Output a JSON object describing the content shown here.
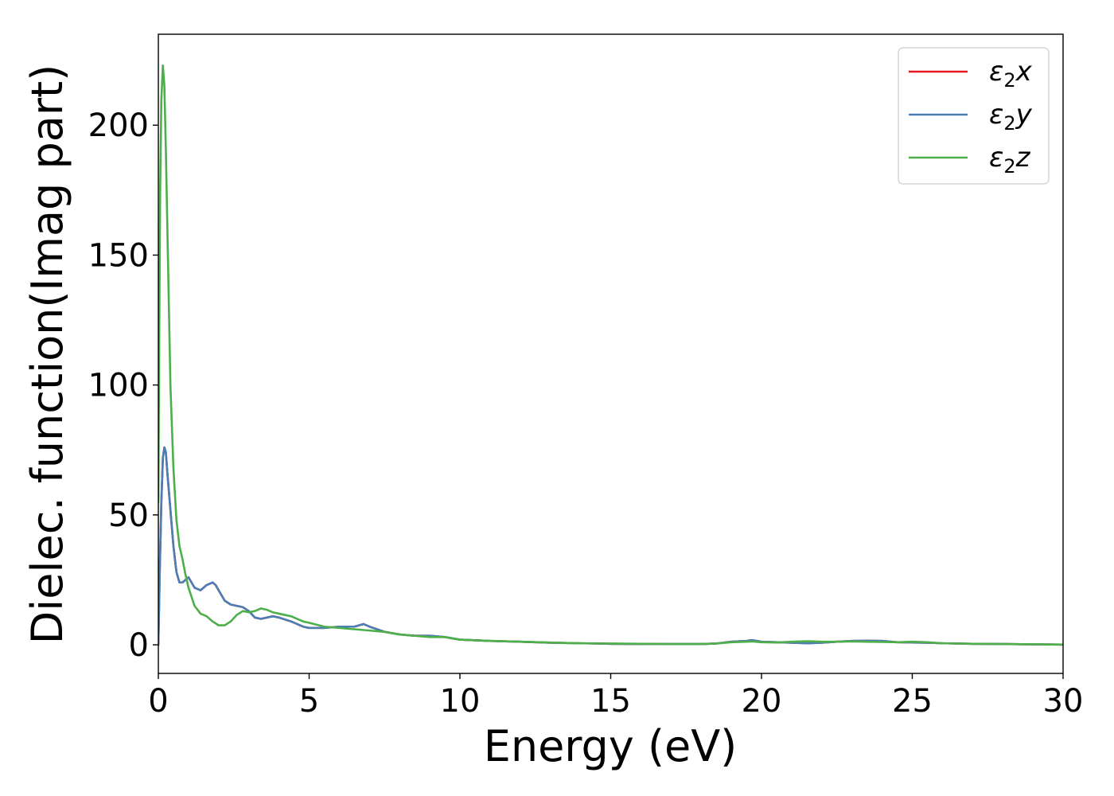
{
  "chart_data": {
    "type": "line",
    "xlabel": "Energy (eV)",
    "ylabel": "Dielec. function(Imag part)",
    "xlim": [
      0,
      30
    ],
    "ylim": [
      -11,
      235
    ],
    "xticks": [
      0,
      5,
      10,
      15,
      20,
      25,
      30
    ],
    "yticks": [
      0,
      50,
      100,
      150,
      200
    ],
    "grid": false,
    "legend_position": "top-right",
    "series": [
      {
        "name": "ε2x",
        "name_base": "ε",
        "name_sub": "2",
        "name_tail": "x",
        "color": "#e41a1c",
        "x": [
          0,
          0.05,
          0.1,
          0.15,
          0.2,
          0.25,
          0.3,
          0.4,
          0.5,
          0.6,
          0.7,
          0.8,
          0.9,
          1.0,
          1.1,
          1.2,
          1.4,
          1.6,
          1.8,
          1.9,
          2.0,
          2.2,
          2.4,
          2.6,
          2.8,
          3.0,
          3.2,
          3.4,
          3.6,
          3.8,
          4.0,
          4.4,
          4.8,
          5.0,
          5.5,
          6.0,
          6.5,
          6.8,
          7.0,
          7.5,
          8.0,
          8.5,
          9.0,
          9.5,
          10,
          11,
          12,
          13,
          14,
          15,
          16,
          17,
          18,
          18.5,
          19,
          19.5,
          19.7,
          20,
          20.5,
          21,
          21.5,
          22,
          22.5,
          23,
          23.5,
          24,
          24.5,
          25,
          25.5,
          26,
          27,
          28,
          29,
          30
        ],
        "values": [
          0,
          30,
          55,
          72,
          76,
          74,
          66,
          52,
          38,
          28,
          24,
          24,
          25,
          26,
          24,
          22,
          21,
          23,
          24,
          23,
          21,
          17,
          15.5,
          15,
          14.5,
          13,
          10.5,
          10,
          10.5,
          11,
          10.5,
          9,
          7,
          6.5,
          6.5,
          7,
          7,
          8,
          7,
          5,
          4,
          3.5,
          3.5,
          3,
          2,
          1.5,
          1.2,
          0.8,
          0.6,
          0.4,
          0.3,
          0.3,
          0.3,
          0.5,
          1.2,
          1.5,
          1.8,
          1.2,
          1.0,
          0.8,
          0.6,
          0.8,
          1.2,
          1.5,
          1.6,
          1.5,
          1.0,
          0.9,
          0.8,
          0.6,
          0.4,
          0.3,
          0.2,
          0.1
        ]
      },
      {
        "name": "ε2y",
        "name_base": "ε",
        "name_sub": "2",
        "name_tail": "y",
        "color": "#4a7fb5",
        "x": [
          0,
          0.05,
          0.1,
          0.15,
          0.2,
          0.25,
          0.3,
          0.4,
          0.5,
          0.6,
          0.7,
          0.8,
          0.9,
          1.0,
          1.1,
          1.2,
          1.4,
          1.6,
          1.8,
          1.9,
          2.0,
          2.2,
          2.4,
          2.6,
          2.8,
          3.0,
          3.2,
          3.4,
          3.6,
          3.8,
          4.0,
          4.4,
          4.8,
          5.0,
          5.5,
          6.0,
          6.5,
          6.8,
          7.0,
          7.5,
          8.0,
          8.5,
          9.0,
          9.5,
          10,
          11,
          12,
          13,
          14,
          15,
          16,
          17,
          18,
          18.5,
          19,
          19.5,
          19.7,
          20,
          20.5,
          21,
          21.5,
          22,
          22.5,
          23,
          23.5,
          24,
          24.5,
          25,
          25.5,
          26,
          27,
          28,
          29,
          30
        ],
        "values": [
          0,
          30,
          55,
          72,
          76,
          74,
          66,
          52,
          38,
          28,
          24,
          24,
          25,
          26,
          24,
          22,
          21,
          23,
          24,
          23,
          21,
          17,
          15.5,
          15,
          14.5,
          13,
          10.5,
          10,
          10.5,
          11,
          10.5,
          9,
          7,
          6.5,
          6.5,
          7,
          7,
          8,
          7,
          5,
          4,
          3.5,
          3.5,
          3,
          2,
          1.5,
          1.2,
          0.8,
          0.6,
          0.4,
          0.3,
          0.3,
          0.3,
          0.5,
          1.2,
          1.5,
          1.8,
          1.2,
          1.0,
          0.8,
          0.6,
          0.8,
          1.2,
          1.5,
          1.6,
          1.5,
          1.0,
          0.9,
          0.8,
          0.6,
          0.4,
          0.3,
          0.2,
          0.1
        ]
      },
      {
        "name": "ε2z",
        "name_base": "ε",
        "name_sub": "2",
        "name_tail": "z",
        "color": "#4daf4a",
        "x": [
          0,
          0.03,
          0.06,
          0.1,
          0.15,
          0.2,
          0.25,
          0.3,
          0.35,
          0.4,
          0.5,
          0.6,
          0.7,
          0.8,
          0.9,
          1.0,
          1.2,
          1.4,
          1.6,
          1.8,
          2.0,
          2.2,
          2.4,
          2.6,
          2.8,
          3.0,
          3.2,
          3.4,
          3.6,
          3.8,
          4.0,
          4.4,
          4.8,
          5.0,
          5.5,
          6.0,
          6.5,
          7.0,
          7.5,
          8.0,
          8.5,
          9.0,
          9.5,
          10,
          11,
          12,
          13,
          14,
          15,
          16,
          17,
          18,
          18.5,
          19,
          19.5,
          19.7,
          20,
          20.5,
          21,
          21.5,
          22,
          22.5,
          23,
          23.5,
          24,
          24.5,
          25,
          25.5,
          26,
          27,
          28,
          29,
          30
        ],
        "values": [
          55,
          120,
          175,
          210,
          223,
          215,
          190,
          160,
          130,
          100,
          68,
          48,
          38,
          33,
          27,
          22,
          15,
          12,
          11,
          9,
          7.5,
          7.5,
          9,
          11.5,
          13,
          12.5,
          13,
          14,
          13.5,
          12.5,
          12,
          11,
          9,
          8.5,
          7,
          6.5,
          6,
          5.5,
          5,
          4,
          3.5,
          3,
          3,
          2,
          1.5,
          1.2,
          0.9,
          0.6,
          0.5,
          0.4,
          0.3,
          0.3,
          0.5,
          1.0,
          1.2,
          1.3,
          1.0,
          0.9,
          1.2,
          1.4,
          1.2,
          1.2,
          1.3,
          1.2,
          1.1,
          1.0,
          1.2,
          1.0,
          0.6,
          0.4,
          0.3,
          0.2,
          0.1
        ]
      }
    ]
  }
}
